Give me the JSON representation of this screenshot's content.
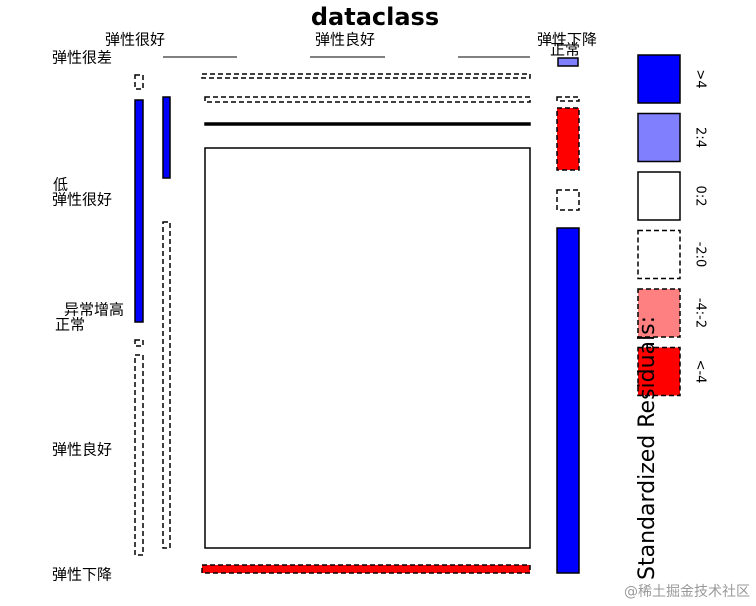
{
  "chart_data": {
    "type": "mosaic",
    "title": "dataclass",
    "top_labels": [
      "弹性很好",
      "弹性良好",
      "弹性下降",
      "正常"
    ],
    "left_labels": [
      "弹性很差",
      "低",
      "弹性很好",
      "异常增高",
      "正常",
      "弹性良好",
      "弹性下降"
    ],
    "legend_title": "Standardized Residuals:",
    "legend": [
      {
        "label": ">4",
        "color": "#0000ff",
        "dashed": false
      },
      {
        "label": "2:4",
        "color": "#8080ff",
        "dashed": false
      },
      {
        "label": "0:2",
        "color": "#ffffff",
        "dashed": false
      },
      {
        "label": "-2:0",
        "color": "#ffffff",
        "dashed": true
      },
      {
        "label": "-4:-2",
        "color": "#ff8080",
        "dashed": true
      },
      {
        "label": "<-4",
        "color": "#ff0000",
        "dashed": true
      }
    ],
    "watermark": "@稀土掘金技术社区"
  }
}
